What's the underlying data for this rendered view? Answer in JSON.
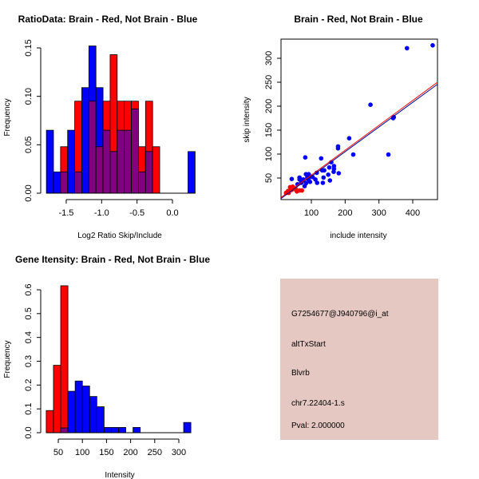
{
  "chart_data": [
    {
      "type": "bar",
      "title": "RatioData: Brain - Red, Not Brain - Blue",
      "xlabel": "Log2 Ratio Skip/Include",
      "ylabel": "Frequency",
      "bin_start": -1.78,
      "bin_width": 0.1,
      "xticks": [
        "-1.5",
        "-1.0",
        "-0.5",
        "0.0"
      ],
      "xtick_values": [
        -1.5,
        -1.0,
        -0.5,
        0.0
      ],
      "yticks": [
        "0.00",
        "0.05",
        "0.10",
        "0.15"
      ],
      "ytick_values": [
        0,
        0.05,
        0.1,
        0.15
      ],
      "series": [
        {
          "name": "Not Brain",
          "color": "#0000ff",
          "values": [
            0.065,
            0.022,
            0.022,
            0.065,
            0.022,
            0.109,
            0.152,
            0.109,
            0.065,
            0.043,
            0.065,
            0.065,
            0.087,
            0.022,
            0.043,
            0,
            0,
            0,
            0,
            0,
            0.043
          ]
        },
        {
          "name": "Brain",
          "color": "#ff0000",
          "values": [
            0,
            0,
            0.048,
            0,
            0.095,
            0,
            0.095,
            0.048,
            0.095,
            0.143,
            0.095,
            0.095,
            0.095,
            0.048,
            0.095,
            0.048,
            0,
            0,
            0,
            0,
            0
          ]
        }
      ],
      "overlap_color": "#800080"
    },
    {
      "type": "scatter",
      "title": "Brain - Red, Not Brain - Blue",
      "xlabel": "include intensity",
      "ylabel": "skip intensity",
      "xlim": [
        5,
        480
      ],
      "ylim": [
        8,
        335
      ],
      "xticks": [
        "100",
        "200",
        "300",
        "400"
      ],
      "xtick_values": [
        100,
        200,
        300,
        400
      ],
      "yticks": [
        "50",
        "100",
        "150",
        "200",
        "250",
        "300"
      ],
      "ytick_values": [
        50,
        100,
        150,
        200,
        250,
        300
      ],
      "series": [
        {
          "name": "Not Brain",
          "color": "#0000ff",
          "points": [
            [
              459,
              327
            ],
            [
              383,
              321
            ],
            [
              275,
              203
            ],
            [
              212,
              133
            ],
            [
              342,
              175
            ],
            [
              344,
              177
            ],
            [
              328,
              99
            ],
            [
              224,
              99
            ],
            [
              179,
              112
            ],
            [
              179,
              116
            ],
            [
              82,
              93
            ],
            [
              129,
              91
            ],
            [
              42,
              48
            ],
            [
              65,
              51
            ],
            [
              65,
              47
            ],
            [
              59,
              37
            ],
            [
              84,
              58
            ],
            [
              92,
              58
            ],
            [
              104,
              52
            ],
            [
              112,
              47
            ],
            [
              117,
              40
            ],
            [
              134,
              40
            ],
            [
              136,
              51
            ],
            [
              116,
              61
            ],
            [
              132,
              66
            ],
            [
              138,
              66
            ],
            [
              155,
              45
            ],
            [
              150,
              57
            ],
            [
              153,
              72
            ],
            [
              167,
              75
            ],
            [
              167,
              69
            ],
            [
              166,
              63
            ],
            [
              181,
              60
            ],
            [
              159,
              83
            ],
            [
              80,
              33
            ],
            [
              84,
              39
            ],
            [
              92,
              46
            ],
            [
              76,
              47
            ],
            [
              100,
              53
            ],
            [
              88,
              51
            ],
            [
              70,
              40
            ],
            [
              96,
              42
            ]
          ]
        },
        {
          "name": "Brain",
          "color": "#ff0000",
          "points": [
            [
              25,
              19
            ],
            [
              31,
              23
            ],
            [
              37,
              31
            ],
            [
              45,
              32
            ],
            [
              53,
              28
            ],
            [
              41,
              25
            ],
            [
              65,
              24
            ],
            [
              72,
              24
            ],
            [
              57,
              22
            ],
            [
              33,
              19
            ],
            [
              40,
              29
            ],
            [
              48,
              27
            ]
          ]
        }
      ],
      "fit_lines": [
        {
          "name": "Brain fit",
          "color": "#ff0000",
          "slope": 0.52,
          "intercept": 4
        },
        {
          "name": "Not Brain fit",
          "color": "#00008b",
          "slope": 0.515,
          "intercept": 2
        }
      ]
    },
    {
      "type": "bar",
      "title": "Gene Itensity: Brain - Red, Not Brain - Blue",
      "xlabel": "Intensity",
      "ylabel": "Frequency",
      "bin_start": 25,
      "bin_width": 15,
      "xticks": [
        "50",
        "100",
        "150",
        "200",
        "250",
        "300"
      ],
      "xtick_values": [
        50,
        100,
        150,
        200,
        250,
        300
      ],
      "yticks": [
        "0.0",
        "0.1",
        "0.2",
        "0.3",
        "0.4",
        "0.5",
        "0.6"
      ],
      "ytick_values": [
        0,
        0.1,
        0.2,
        0.3,
        0.4,
        0.5,
        0.6
      ],
      "series": [
        {
          "name": "Not Brain",
          "color": "#0000ff",
          "values": [
            0,
            0,
            0.02,
            0.174,
            0.217,
            0.196,
            0.152,
            0.109,
            0.022,
            0.022,
            0.022,
            0,
            0.022,
            0,
            0,
            0,
            0,
            0,
            0,
            0.043
          ]
        },
        {
          "name": "Brain",
          "color": "#ff0000",
          "values": [
            0.093,
            0.283,
            0.617,
            0,
            0,
            0,
            0,
            0,
            0,
            0,
            0,
            0,
            0,
            0,
            0,
            0,
            0,
            0,
            0,
            0
          ]
        }
      ],
      "overlap_color": "#800080"
    }
  ],
  "info_panel": {
    "background": "#e6c8c2",
    "probe_id": "G7254677@J940796@i_at",
    "event_type": "altTxStart",
    "gene": "Blvrb",
    "location": "chr7.22404-1.s",
    "pval": "Pval: 2.000000",
    "pval_color": "#8b0000"
  }
}
